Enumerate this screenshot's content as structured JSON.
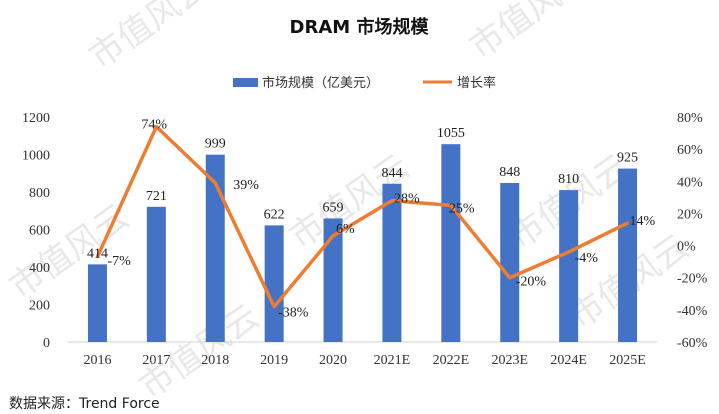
{
  "watermark": "市值风云",
  "chart_data": {
    "type": "bar",
    "title": "DRAM 市场规模",
    "categories": [
      "2016",
      "2017",
      "2018",
      "2019",
      "2020",
      "2021E",
      "2022E",
      "2023E",
      "2024E",
      "2025E"
    ],
    "series": [
      {
        "name": "市场规模（亿美元）",
        "type": "bar",
        "axis": "left",
        "color": "#4472C4",
        "values": [
          414,
          721,
          999,
          622,
          659,
          844,
          1055,
          848,
          810,
          925
        ],
        "labels": [
          "414",
          "721",
          "999",
          "622",
          "659",
          "844",
          "1055",
          "848",
          "810",
          "925"
        ]
      },
      {
        "name": "增长率",
        "type": "line",
        "axis": "right",
        "color": "#ED7D31",
        "values": [
          -7,
          74,
          39,
          -38,
          6,
          28,
          25,
          -20,
          -4,
          14
        ],
        "labels": [
          "-7%",
          "74%",
          "39%",
          "-38%",
          "6%",
          "28%",
          "25%",
          "-20%",
          "-4%",
          "14%"
        ]
      }
    ],
    "y_left": {
      "min": 0,
      "max": 1200,
      "ticks": [
        "0",
        "200",
        "400",
        "600",
        "800",
        "1000",
        "1200"
      ]
    },
    "y_right": {
      "min": -60,
      "max": 80,
      "ticks": [
        "-60%",
        "-40%",
        "-20%",
        "0%",
        "20%",
        "40%",
        "60%",
        "80%"
      ]
    },
    "legend": "top-center",
    "grid": false
  },
  "source": "数据来源：Trend Force"
}
